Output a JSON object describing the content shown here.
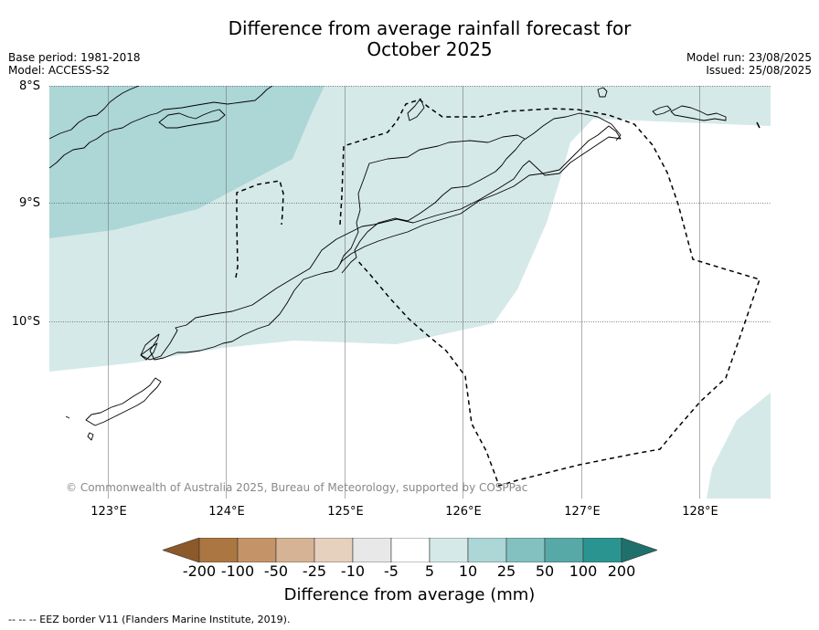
{
  "title_line1": "Difference from average rainfall forecast for",
  "title_line2": "October 2025",
  "base_period": "Base period: 1981-2018",
  "model": "Model: ACCESS-S2",
  "model_run": "Model run: 23/08/2025",
  "issued": "Issued: 25/08/2025",
  "lat_labels": [
    "8°S",
    "9°S",
    "10°S"
  ],
  "lon_labels": [
    "123°E",
    "124°E",
    "125°E",
    "126°E",
    "127°E",
    "128°E"
  ],
  "copyright": "© Commonwealth of Australia 2025, Bureau of Meteorology, supported by COSPPac",
  "colorbar": {
    "label": "Difference from average (mm)",
    "ticks": [
      "-200",
      "-100",
      "-50",
      "-25",
      "-10",
      "-5",
      "5",
      "10",
      "25",
      "50",
      "100",
      "200"
    ],
    "colors": [
      "#8c5a2a",
      "#ab7641",
      "#c49468",
      "#d6b394",
      "#e6d0be",
      "#e8e8e8",
      "#ffffff",
      "#d5e9e8",
      "#add6d6",
      "#82c1c0",
      "#57a9a8",
      "#2a9590",
      "#1f706d"
    ]
  },
  "legend_regions": {
    "light_teal": "#d5e9e8",
    "medium_teal": "#add6d6"
  },
  "footnote": "-- -- -- EEZ border V11 (Flanders Marine Institute, 2019)."
}
